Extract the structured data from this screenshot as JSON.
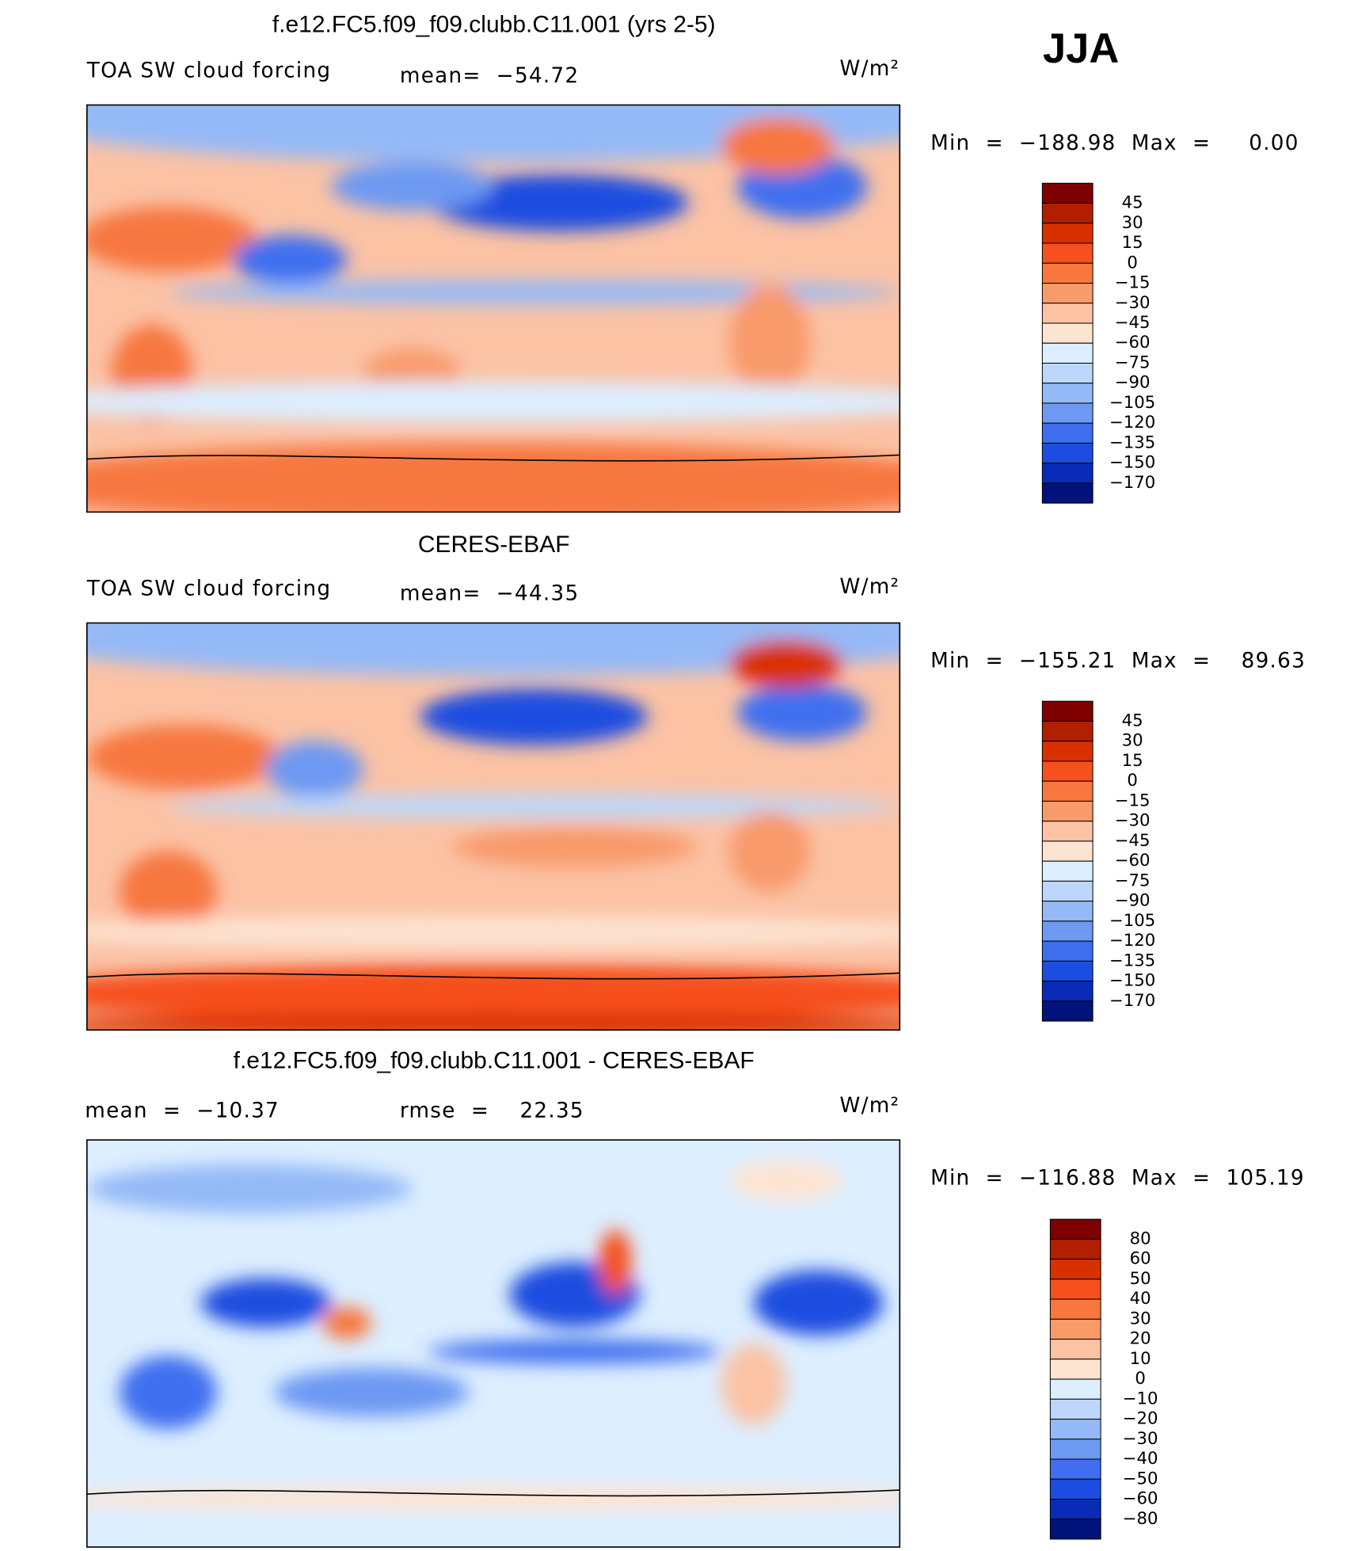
{
  "season": "JJA",
  "panels": [
    {
      "title": "f.e12.FC5.f09_f09.clubb.C11.001 (yrs 2-5)",
      "variable": "TOA SW cloud forcing",
      "stats": [
        "mean=  −54.72"
      ],
      "units": "W/m²",
      "range": "Min  =  −188.98  Max  =     0.00",
      "colorbar": {
        "levels": [
          {
            "value": 45,
            "label": "45"
          },
          {
            "value": 30,
            "label": "30"
          },
          {
            "value": 15,
            "label": "15"
          },
          {
            "value": 0,
            "label": "0"
          },
          {
            "value": -15,
            "label": "−15"
          },
          {
            "value": -30,
            "label": "−30"
          },
          {
            "value": -45,
            "label": "−45"
          },
          {
            "value": -60,
            "label": "−60"
          },
          {
            "value": -75,
            "label": "−75"
          },
          {
            "value": -90,
            "label": "−90"
          },
          {
            "value": -105,
            "label": "−105"
          },
          {
            "value": -120,
            "label": "−120"
          },
          {
            "value": -135,
            "label": "−135"
          },
          {
            "value": -150,
            "label": "−150"
          },
          {
            "value": -170,
            "label": "−170"
          }
        ],
        "colors": [
          "#7f0000",
          "#b21e00",
          "#d93000",
          "#f5501d",
          "#f7773f",
          "#f89a6a",
          "#fbc2a4",
          "#fde4d2",
          "#dceeff",
          "#bcd7fb",
          "#94b9f7",
          "#6d99f2",
          "#3f6fef",
          "#1c4de0",
          "#0a2bb8",
          "#00137a"
        ]
      }
    },
    {
      "title": "CERES-EBAF",
      "variable": "TOA SW cloud forcing",
      "stats": [
        "mean=  −44.35"
      ],
      "units": "W/m²",
      "range": "Min  =  −155.21  Max  =    89.63",
      "colorbar": {
        "levels": [
          {
            "value": 45,
            "label": "45"
          },
          {
            "value": 30,
            "label": "30"
          },
          {
            "value": 15,
            "label": "15"
          },
          {
            "value": 0,
            "label": "0"
          },
          {
            "value": -15,
            "label": "−15"
          },
          {
            "value": -30,
            "label": "−30"
          },
          {
            "value": -45,
            "label": "−45"
          },
          {
            "value": -60,
            "label": "−60"
          },
          {
            "value": -75,
            "label": "−75"
          },
          {
            "value": -90,
            "label": "−90"
          },
          {
            "value": -105,
            "label": "−105"
          },
          {
            "value": -120,
            "label": "−120"
          },
          {
            "value": -135,
            "label": "−135"
          },
          {
            "value": -150,
            "label": "−150"
          },
          {
            "value": -170,
            "label": "−170"
          }
        ],
        "colors": [
          "#7f0000",
          "#b21e00",
          "#d93000",
          "#f5501d",
          "#f7773f",
          "#f89a6a",
          "#fbc2a4",
          "#fde4d2",
          "#dceeff",
          "#bcd7fb",
          "#94b9f7",
          "#6d99f2",
          "#3f6fef",
          "#1c4de0",
          "#0a2bb8",
          "#00137a"
        ]
      }
    },
    {
      "title": "f.e12.FC5.f09_f09.clubb.C11.001 - CERES-EBAF",
      "stats": [
        "mean  =  −10.37",
        "rmse  =    22.35"
      ],
      "units": "W/m²",
      "range": "Min  =  −116.88  Max  =  105.19",
      "colorbar": {
        "levels": [
          {
            "value": 80,
            "label": "80"
          },
          {
            "value": 60,
            "label": "60"
          },
          {
            "value": 50,
            "label": "50"
          },
          {
            "value": 40,
            "label": "40"
          },
          {
            "value": 30,
            "label": "30"
          },
          {
            "value": 20,
            "label": "20"
          },
          {
            "value": 10,
            "label": "10"
          },
          {
            "value": 0,
            "label": "0"
          },
          {
            "value": -10,
            "label": "−10"
          },
          {
            "value": -20,
            "label": "−20"
          },
          {
            "value": -30,
            "label": "−30"
          },
          {
            "value": -40,
            "label": "−40"
          },
          {
            "value": -50,
            "label": "−50"
          },
          {
            "value": -60,
            "label": "−60"
          },
          {
            "value": -80,
            "label": "−80"
          }
        ],
        "colors": [
          "#7f0000",
          "#b21e00",
          "#d93000",
          "#f5501d",
          "#f7773f",
          "#f89a6a",
          "#fbc2a4",
          "#fde4d2",
          "#dceeff",
          "#bcd7fb",
          "#94b9f7",
          "#6d99f2",
          "#3f6fef",
          "#1c4de0",
          "#0a2bb8",
          "#00137a"
        ]
      }
    }
  ]
}
